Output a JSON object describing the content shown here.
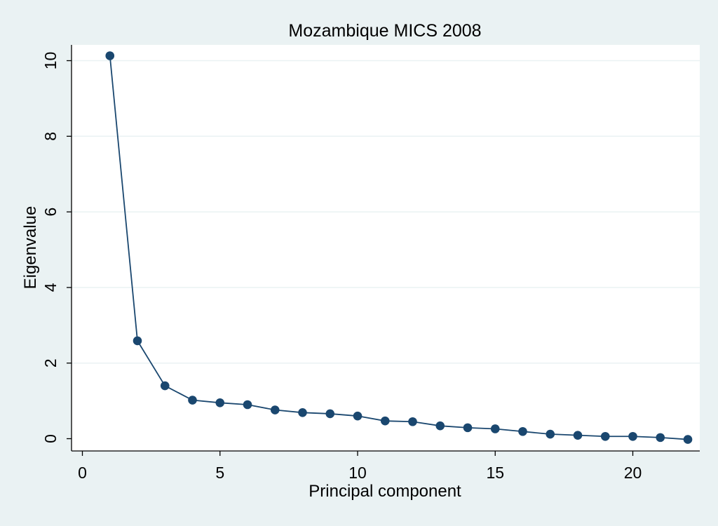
{
  "chart_data": {
    "type": "line",
    "title": "Mozambique MICS 2008",
    "xlabel": "Principal component",
    "ylabel": "Eigenvalue",
    "xlim": [
      0,
      22
    ],
    "ylim": [
      0,
      10
    ],
    "x_ticks": [
      0,
      5,
      10,
      15,
      20
    ],
    "y_ticks": [
      0,
      2,
      4,
      6,
      8,
      10
    ],
    "x_tick_labels": [
      "0",
      "5",
      "10",
      "15",
      "20"
    ],
    "y_tick_labels": [
      "0",
      "2",
      "4",
      "6",
      "8",
      "10"
    ],
    "grid": true,
    "series": [
      {
        "x": [
          1,
          2,
          3,
          4,
          5,
          6,
          7,
          8,
          9,
          10,
          11,
          12,
          13,
          14,
          15,
          16,
          17,
          18,
          19,
          20,
          21,
          22
        ],
        "values": [
          10.13,
          2.59,
          1.4,
          1.02,
          0.95,
          0.9,
          0.76,
          0.69,
          0.66,
          0.6,
          0.47,
          0.45,
          0.34,
          0.29,
          0.26,
          0.19,
          0.12,
          0.09,
          0.06,
          0.06,
          0.03,
          -0.02
        ]
      }
    ],
    "colors": {
      "background": "#eaf2f3",
      "plot_background": "#ffffff",
      "gridline": "#eaf2f3",
      "series": "#1a476f",
      "axis": "#000000"
    }
  }
}
